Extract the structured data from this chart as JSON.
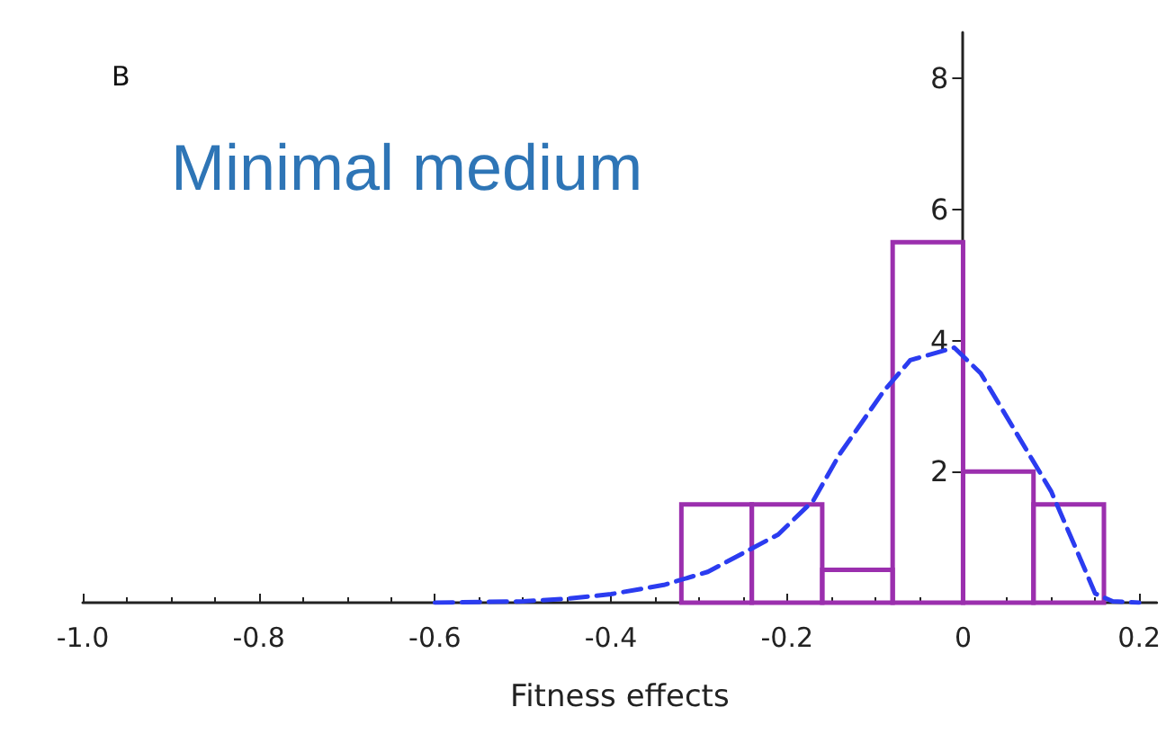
{
  "chart_data": {
    "type": "histogram",
    "title": "Minimal medium",
    "xlabel": "Fitness effects",
    "annotations": [
      "B"
    ],
    "bins": [
      -0.32,
      -0.24,
      -0.16,
      -0.08,
      0,
      0.08,
      0.16
    ],
    "series": [
      {
        "color": "#9b2fae",
        "values": [
          1.5,
          1.5,
          0.5,
          5.5,
          2,
          1.5
        ]
      },
      {
        "type": "line",
        "color": "#2b3cf0",
        "line_style": "dashed",
        "marker": "none",
        "x": [
          -0.6,
          -0.5,
          -0.45,
          -0.4,
          -0.34,
          -0.29,
          -0.21,
          -0.17,
          -0.14,
          -0.09,
          -0.06,
          -0.01,
          0.02,
          0.06,
          0.1,
          0.13,
          0.15,
          0.17,
          0.2
        ],
        "values": [
          0,
          0.02,
          0.06,
          0.13,
          0.27,
          0.47,
          1.04,
          1.56,
          2.27,
          3.23,
          3.7,
          3.89,
          3.5,
          2.6,
          1.7,
          0.77,
          0.14,
          0.02,
          0
        ]
      }
    ],
    "xlim": [
      -1.0,
      0.22
    ],
    "xticks": [
      {
        "value": -1,
        "label": "-1.0"
      },
      -0.8,
      -0.6,
      -0.4,
      -0.2,
      0,
      0.2
    ],
    "ylim": [
      0,
      8.7
    ],
    "yticks": [
      2,
      4,
      6,
      8
    ],
    "grid": false
  }
}
